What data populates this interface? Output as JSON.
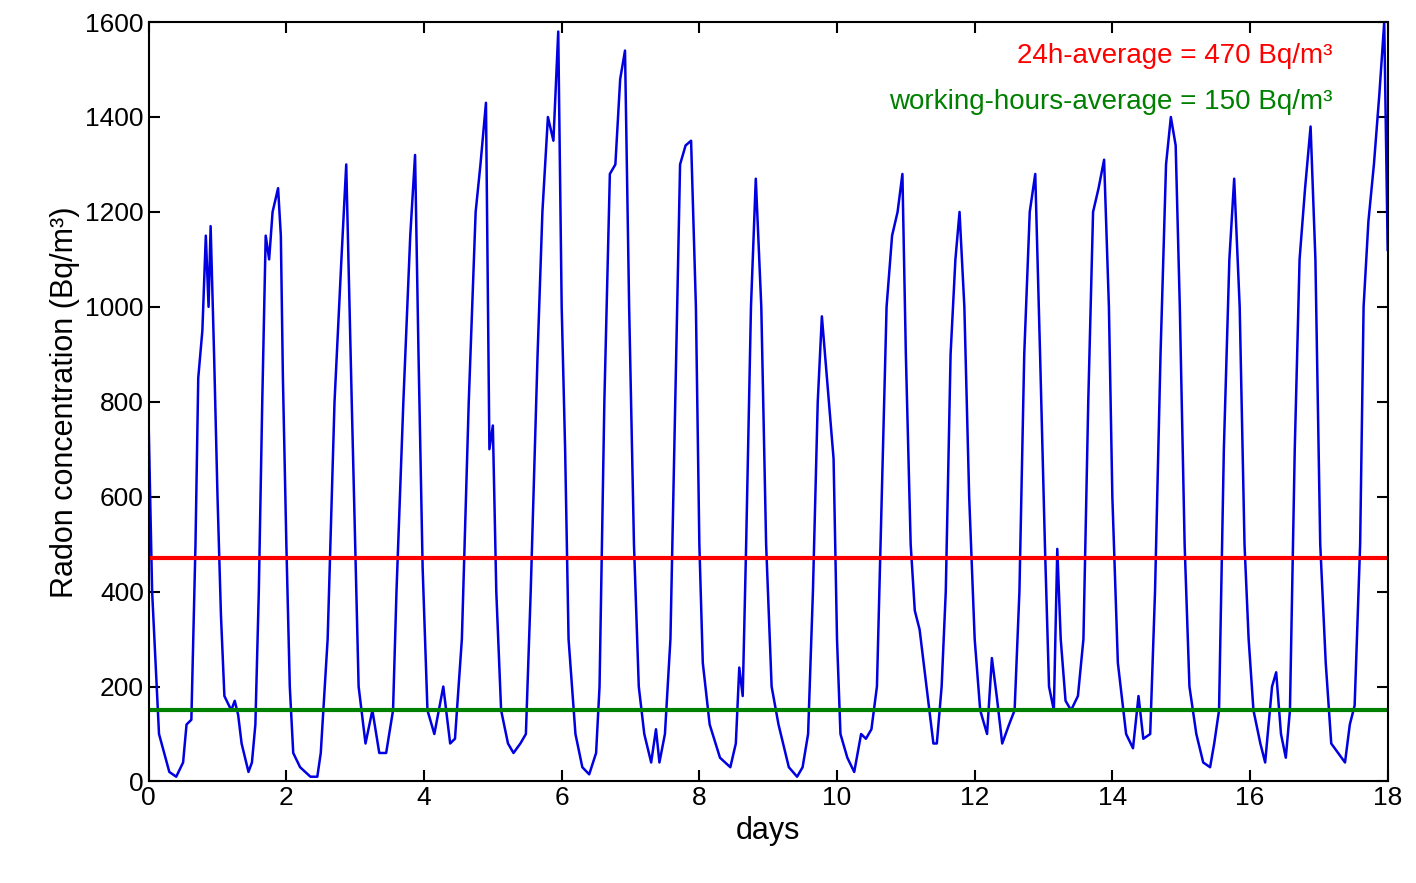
{
  "chart_data": {
    "type": "line",
    "x_label": "days",
    "y_label": "Radon concentration (Bq/m³)",
    "xlim": [
      0,
      18
    ],
    "xticks": [
      0,
      2,
      4,
      6,
      8,
      10,
      12,
      14,
      16,
      18
    ],
    "ylim": [
      0,
      1600
    ],
    "yticks": [
      0,
      200,
      400,
      600,
      800,
      1000,
      1200,
      1400,
      1600
    ],
    "grid": false,
    "series": [
      {
        "color": "#0000e0",
        "x": [
          0,
          0.05,
          0.15,
          0.3,
          0.4,
          0.5,
          0.55,
          0.62,
          0.68,
          0.72,
          0.78,
          0.83,
          0.87,
          0.9,
          0.95,
          1.0,
          1.05,
          1.1,
          1.2,
          1.25,
          1.3,
          1.35,
          1.45,
          1.5,
          1.55,
          1.6,
          1.65,
          1.7,
          1.75,
          1.8,
          1.88,
          1.92,
          1.95,
          2.0,
          2.05,
          2.1,
          2.2,
          2.35,
          2.45,
          2.5,
          2.6,
          2.7,
          2.8,
          2.87,
          2.95,
          3.0,
          3.05,
          3.15,
          3.25,
          3.35,
          3.45,
          3.55,
          3.6,
          3.7,
          3.8,
          3.87,
          3.92,
          3.98,
          4.05,
          4.15,
          4.28,
          4.38,
          4.45,
          4.55,
          4.65,
          4.75,
          4.82,
          4.9,
          4.95,
          5.0,
          5.05,
          5.12,
          5.22,
          5.3,
          5.4,
          5.48,
          5.55,
          5.65,
          5.72,
          5.8,
          5.88,
          5.95,
          6.0,
          6.05,
          6.1,
          6.2,
          6.3,
          6.4,
          6.5,
          6.55,
          6.62,
          6.7,
          6.78,
          6.85,
          6.92,
          6.98,
          7.05,
          7.12,
          7.2,
          7.3,
          7.37,
          7.42,
          7.5,
          7.58,
          7.65,
          7.72,
          7.8,
          7.88,
          7.95,
          8.0,
          8.05,
          8.15,
          8.3,
          8.45,
          8.53,
          8.58,
          8.63,
          8.68,
          8.75,
          8.82,
          8.9,
          8.97,
          9.05,
          9.15,
          9.3,
          9.42,
          9.5,
          9.58,
          9.65,
          9.72,
          9.78,
          9.95,
          10.0,
          10.05,
          10.15,
          10.25,
          10.35,
          10.42,
          10.5,
          10.58,
          10.65,
          10.72,
          10.8,
          10.88,
          10.95,
          11.0,
          11.07,
          11.13,
          11.2,
          11.3,
          11.4,
          11.45,
          11.52,
          11.58,
          11.65,
          11.72,
          11.78,
          11.85,
          11.92,
          12.0,
          12.08,
          12.18,
          12.25,
          12.32,
          12.4,
          12.5,
          12.58,
          12.65,
          12.72,
          12.8,
          12.88,
          12.95,
          13.02,
          13.08,
          13.15,
          13.2,
          13.25,
          13.32,
          13.4,
          13.5,
          13.58,
          13.65,
          13.72,
          13.8,
          13.88,
          13.95,
          14.0,
          14.08,
          14.2,
          14.3,
          14.38,
          14.45,
          14.55,
          14.62,
          14.7,
          14.78,
          14.85,
          14.92,
          14.98,
          15.05,
          15.12,
          15.22,
          15.32,
          15.42,
          15.48,
          15.55,
          15.62,
          15.7,
          15.77,
          15.85,
          15.92,
          15.98,
          16.05,
          16.15,
          16.22,
          16.32,
          16.38,
          16.45,
          16.52,
          16.58,
          16.65,
          16.72,
          16.8,
          16.88,
          16.95,
          17.02,
          17.1,
          17.18,
          17.28,
          17.38,
          17.45,
          17.52,
          17.6,
          17.65,
          17.72,
          17.8,
          17.88,
          17.95,
          18.0
        ],
        "values": [
          750,
          400,
          100,
          20,
          10,
          40,
          120,
          130,
          500,
          850,
          950,
          1150,
          1000,
          1170,
          900,
          600,
          350,
          180,
          150,
          170,
          140,
          80,
          20,
          40,
          120,
          400,
          800,
          1150,
          1100,
          1200,
          1250,
          1150,
          850,
          500,
          200,
          60,
          30,
          10,
          10,
          60,
          300,
          800,
          1100,
          1300,
          800,
          500,
          200,
          80,
          150,
          60,
          60,
          150,
          400,
          800,
          1150,
          1320,
          900,
          450,
          150,
          100,
          200,
          80,
          90,
          300,
          800,
          1200,
          1300,
          1430,
          700,
          750,
          400,
          150,
          80,
          60,
          80,
          100,
          400,
          900,
          1200,
          1400,
          1350,
          1580,
          1000,
          700,
          300,
          100,
          30,
          15,
          60,
          200,
          800,
          1280,
          1300,
          1480,
          1540,
          1000,
          500,
          200,
          100,
          40,
          110,
          40,
          100,
          300,
          800,
          1300,
          1340,
          1350,
          1000,
          500,
          250,
          120,
          50,
          30,
          80,
          240,
          180,
          500,
          1000,
          1270,
          1000,
          500,
          200,
          120,
          30,
          10,
          30,
          100,
          400,
          800,
          980,
          680,
          300,
          100,
          50,
          20,
          100,
          90,
          110,
          200,
          600,
          1000,
          1150,
          1200,
          1280,
          900,
          500,
          360,
          320,
          200,
          80,
          80,
          200,
          400,
          900,
          1100,
          1200,
          1000,
          600,
          300,
          150,
          100,
          260,
          180,
          80,
          120,
          150,
          400,
          900,
          1200,
          1280,
          900,
          500,
          200,
          150,
          490,
          300,
          170,
          150,
          180,
          300,
          800,
          1200,
          1250,
          1310,
          1000,
          600,
          250,
          100,
          70,
          180,
          90,
          100,
          400,
          900,
          1300,
          1400,
          1340,
          1000,
          500,
          200,
          100,
          40,
          30,
          80,
          150,
          700,
          1100,
          1270,
          1000,
          500,
          300,
          150,
          80,
          40,
          200,
          230,
          100,
          50,
          150,
          700,
          1100,
          1250,
          1380,
          1100,
          500,
          250,
          80,
          60,
          40,
          120,
          160,
          500,
          1000,
          1180,
          1300,
          1450,
          1600,
          1120
        ]
      }
    ],
    "reference_lines": [
      {
        "value": 470,
        "label": "24h-average = 470 Bq/m³",
        "color": "#ff0000"
      },
      {
        "value": 150,
        "label": "working-hours-average = 150 Bq/m³",
        "color": "#008000"
      }
    ]
  }
}
